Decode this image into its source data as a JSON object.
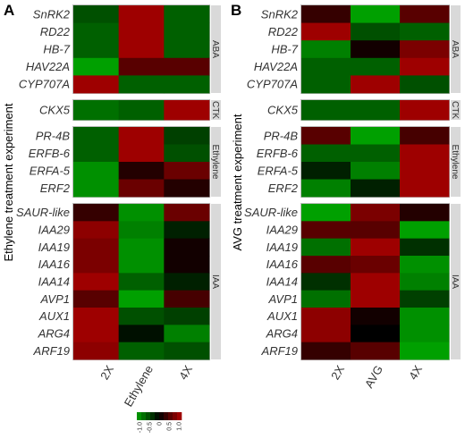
{
  "chart_data": [
    {
      "type": "heatmap",
      "panel_label": "A",
      "ylabel": "Ethylene treatment experiment",
      "columns": [
        "2X",
        "Ethylene",
        "4X"
      ],
      "groups": [
        {
          "name": "ABA",
          "genes": [
            "SnRK2",
            "RD22",
            "HB-7",
            "HAV22A",
            "CYP707A"
          ],
          "values": [
            [
              -0.5,
              0.9,
              -0.6
            ],
            [
              -0.6,
              0.9,
              -0.6
            ],
            [
              -0.6,
              0.9,
              -0.6
            ],
            [
              -1.0,
              0.5,
              0.5
            ],
            [
              0.9,
              -0.6,
              -0.6
            ]
          ]
        },
        {
          "name": "CTK",
          "genes": [
            "CKX5"
          ],
          "values": [
            [
              -0.7,
              -0.6,
              0.9
            ]
          ]
        },
        {
          "name": "Ethylene",
          "genes": [
            "PR-4B",
            "ERFB-6",
            "ERFA-5",
            "ERF2"
          ],
          "values": [
            [
              -0.6,
              0.9,
              -0.4
            ],
            [
              -0.6,
              0.9,
              -0.5
            ],
            [
              -0.9,
              0.2,
              0.6
            ],
            [
              -0.9,
              0.6,
              0.2
            ]
          ]
        },
        {
          "name": "IAA",
          "genes": [
            "SAUR-like",
            "IAA29",
            "IAA19",
            "IAA16",
            "IAA14",
            "AVP1",
            "AUX1",
            "ARG4",
            "ARF19"
          ],
          "values": [
            [
              0.3,
              -0.9,
              0.6
            ],
            [
              0.8,
              -0.8,
              -0.2
            ],
            [
              0.7,
              -0.9,
              0.1
            ],
            [
              0.7,
              -0.9,
              0.1
            ],
            [
              0.9,
              -0.6,
              -0.2
            ],
            [
              0.5,
              -1.0,
              0.4
            ],
            [
              0.9,
              -0.5,
              -0.4
            ],
            [
              0.9,
              -0.1,
              -0.8
            ],
            [
              0.8,
              -0.6,
              -0.5
            ]
          ]
        }
      ]
    },
    {
      "type": "heatmap",
      "panel_label": "B",
      "ylabel": "AVG treatment experiment",
      "columns": [
        "2X",
        "AVG",
        "4X"
      ],
      "groups": [
        {
          "name": "ABA",
          "genes": [
            "SnRK2",
            "RD22",
            "HB-7",
            "HAV22A",
            "CYP707A"
          ],
          "values": [
            [
              0.3,
              -1.0,
              0.5
            ],
            [
              0.9,
              -0.5,
              -0.6
            ],
            [
              -0.8,
              0.1,
              0.7
            ],
            [
              -0.6,
              -0.6,
              0.9
            ],
            [
              -0.6,
              0.9,
              -0.5
            ]
          ]
        },
        {
          "name": "CTK",
          "genes": [
            "CKX5"
          ],
          "values": [
            [
              -0.6,
              -0.6,
              0.9
            ]
          ]
        },
        {
          "name": "Ethylene",
          "genes": [
            "PR-4B",
            "ERFB-6",
            "ERFA-5",
            "ERF2"
          ],
          "values": [
            [
              0.5,
              -1.0,
              0.4
            ],
            [
              -0.6,
              -0.6,
              0.9
            ],
            [
              -0.2,
              -0.8,
              0.9
            ],
            [
              -0.8,
              -0.2,
              0.9
            ]
          ]
        },
        {
          "name": "IAA",
          "genes": [
            "SAUR-like",
            "IAA29",
            "IAA19",
            "IAA16",
            "IAA14",
            "AVP1",
            "AUX1",
            "ARG4",
            "ARF19"
          ],
          "values": [
            [
              -1.0,
              0.7,
              0.2
            ],
            [
              0.5,
              0.5,
              -1.0
            ],
            [
              -0.7,
              0.9,
              -0.3
            ],
            [
              0.5,
              0.6,
              -0.9
            ],
            [
              -0.3,
              0.9,
              -0.8
            ],
            [
              -0.7,
              0.9,
              -0.4
            ],
            [
              0.8,
              0.1,
              -0.9
            ],
            [
              0.8,
              0.0,
              -0.9
            ],
            [
              0.3,
              0.5,
              -1.0
            ]
          ]
        }
      ]
    }
  ],
  "colorscale": {
    "range": [
      -1.0,
      1.0
    ],
    "ticks": [
      "-1.0",
      "-0.5",
      "0",
      "0.5",
      "1.0"
    ],
    "low_color": "#00a000",
    "mid_color": "#000000",
    "high_color": "#b00000"
  }
}
